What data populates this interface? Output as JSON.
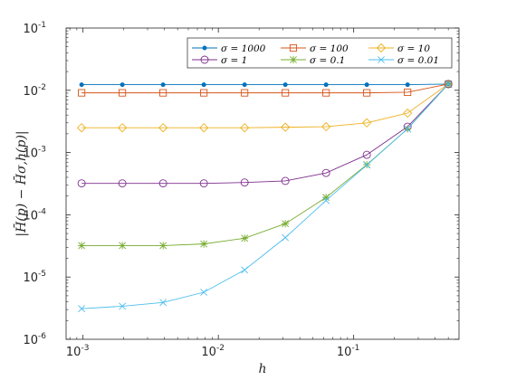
{
  "chart_data": {
    "type": "line",
    "xscale": "log",
    "yscale": "log",
    "xlabel": "h",
    "ylabel": "|H̄(p) − H̄σ,h(p)|",
    "xlim": [
      0.00075,
      0.6
    ],
    "ylim": [
      1e-06,
      0.1
    ],
    "grid": false,
    "legend_location": "top-right",
    "x_ticks": [
      {
        "value": 0.001,
        "base": "10",
        "exp": "-3"
      },
      {
        "value": 0.01,
        "base": "10",
        "exp": "-2"
      },
      {
        "value": 0.1,
        "base": "10",
        "exp": "-1"
      }
    ],
    "y_ticks": [
      {
        "value": 1e-06,
        "base": "10",
        "exp": "-6"
      },
      {
        "value": 1e-05,
        "base": "10",
        "exp": "-5"
      },
      {
        "value": 0.0001,
        "base": "10",
        "exp": "-4"
      },
      {
        "value": 0.001,
        "base": "10",
        "exp": "-3"
      },
      {
        "value": 0.01,
        "base": "10",
        "exp": "-2"
      },
      {
        "value": 0.1,
        "base": "10",
        "exp": "-1"
      }
    ],
    "x": [
      0.0009766,
      0.001953,
      0.003906,
      0.007813,
      0.01563,
      0.03125,
      0.0625,
      0.125,
      0.25,
      0.5
    ],
    "series": [
      {
        "name": "σ = 1000",
        "color": "#0072BD",
        "marker": "dot",
        "values": [
          0.0123,
          0.0123,
          0.0123,
          0.0123,
          0.0123,
          0.0123,
          0.0123,
          0.0123,
          0.0123,
          0.0126
        ]
      },
      {
        "name": "σ = 100",
        "color": "#D95319",
        "marker": "square",
        "values": [
          0.0091,
          0.0091,
          0.0091,
          0.0091,
          0.0091,
          0.0091,
          0.0091,
          0.0091,
          0.0093,
          0.0126
        ]
      },
      {
        "name": "σ = 10",
        "color": "#EDB120",
        "marker": "diamond",
        "values": [
          0.0025,
          0.0025,
          0.0025,
          0.0025,
          0.0025,
          0.00255,
          0.0026,
          0.003,
          0.0043,
          0.0126
        ]
      },
      {
        "name": "σ = 1",
        "color": "#7E2F8E",
        "marker": "circle",
        "values": [
          0.00032,
          0.00032,
          0.00032,
          0.00032,
          0.00033,
          0.00035,
          0.00047,
          0.00092,
          0.0026,
          0.0126
        ]
      },
      {
        "name": "σ = 0.1",
        "color": "#77AC30",
        "marker": "star",
        "values": [
          3.2e-05,
          3.2e-05,
          3.2e-05,
          3.4e-05,
          4.2e-05,
          7.2e-05,
          0.00019,
          0.00064,
          0.0024,
          0.0126
        ]
      },
      {
        "name": "σ = 0.01",
        "color": "#4DBEEE",
        "marker": "x",
        "values": [
          3.1e-06,
          3.4e-06,
          3.9e-06,
          5.7e-06,
          1.3e-05,
          4.3e-05,
          0.00017,
          0.00063,
          0.0024,
          0.0126
        ]
      }
    ]
  }
}
